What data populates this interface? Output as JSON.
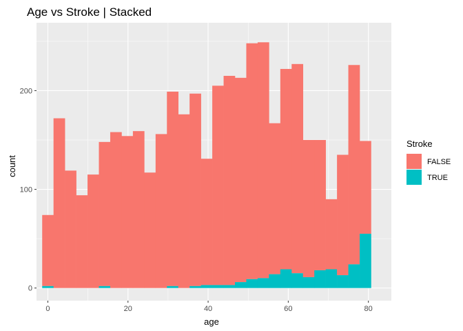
{
  "chart_data": {
    "type": "bar",
    "stacked": true,
    "title": "Age vs Stroke | Stacked",
    "xlabel": "age",
    "ylabel": "count",
    "bin_width": 2.83,
    "bin_start": -1.415,
    "xlim": [
      -2.83,
      85.73
    ],
    "ylim": [
      -12.8,
      268.8
    ],
    "xticks": [
      0,
      20,
      40,
      60,
      80
    ],
    "yticks": [
      0,
      100,
      200
    ],
    "grid": true,
    "legend": {
      "title": "Stroke",
      "placement": "right",
      "entries": [
        {
          "label": "FALSE",
          "color": "#F8766D"
        },
        {
          "label": "TRUE",
          "color": "#00BFC4"
        }
      ]
    },
    "series": [
      {
        "name": "FALSE",
        "color": "#F8766D",
        "values": [
          72,
          172,
          119,
          94,
          115,
          146,
          158,
          154,
          159,
          117,
          156,
          197,
          176,
          195,
          128,
          202,
          212,
          207,
          239,
          239,
          153,
          203,
          212,
          139,
          132,
          71,
          122,
          202,
          94
        ]
      },
      {
        "name": "TRUE",
        "color": "#00BFC4",
        "values": [
          2,
          0,
          0,
          0,
          0,
          2,
          0,
          0,
          0,
          0,
          0,
          2,
          0,
          2,
          3,
          3,
          3,
          6,
          9,
          10,
          14,
          19,
          15,
          11,
          18,
          19,
          13,
          24,
          55
        ]
      }
    ]
  }
}
